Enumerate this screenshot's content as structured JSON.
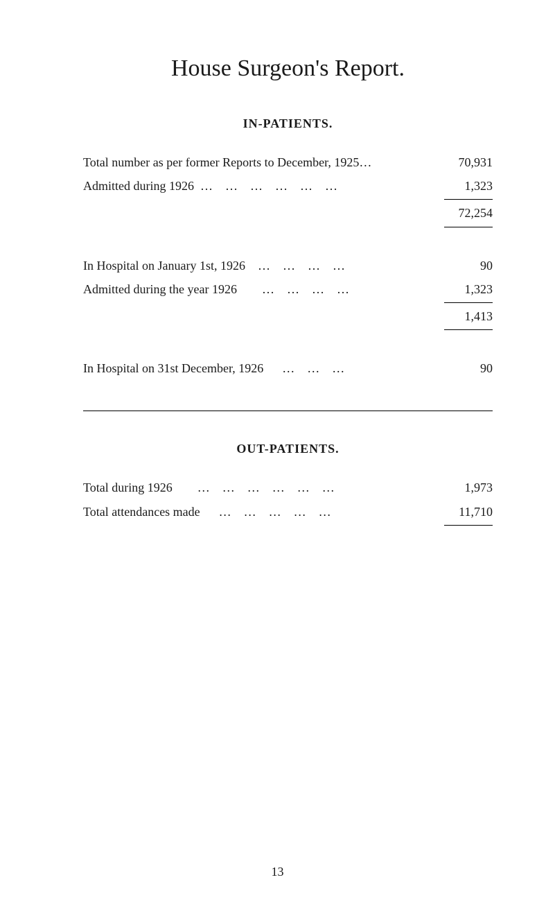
{
  "title": "House Surgeon's Report.",
  "in_patients": {
    "heading": "IN-PATIENTS.",
    "rows": [
      {
        "label": "Total number as per former Reports to December, 1925…",
        "value": "70,931"
      },
      {
        "label": "Admitted during 1926  …    …    …    …    …    …",
        "value": "1,323"
      }
    ],
    "subtotal1": "72,254",
    "rows2": [
      {
        "label": "In Hospital on January 1st, 1926    …    …    …    …",
        "value": "90"
      },
      {
        "label": "Admitted during the year 1926        …    …    …    …",
        "value": "1,323"
      }
    ],
    "subtotal2": "1,413",
    "rows3": [
      {
        "label": "In Hospital on 31st December, 1926      …    …    …",
        "value": "90"
      }
    ]
  },
  "out_patients": {
    "heading": "OUT-PATIENTS.",
    "rows": [
      {
        "label": "Total during 1926        …    …    …    …    …    …",
        "value": "1,973"
      },
      {
        "label": "Total attendances made      …    …    …    …    …",
        "value": "11,710"
      }
    ]
  },
  "page_number": "13"
}
